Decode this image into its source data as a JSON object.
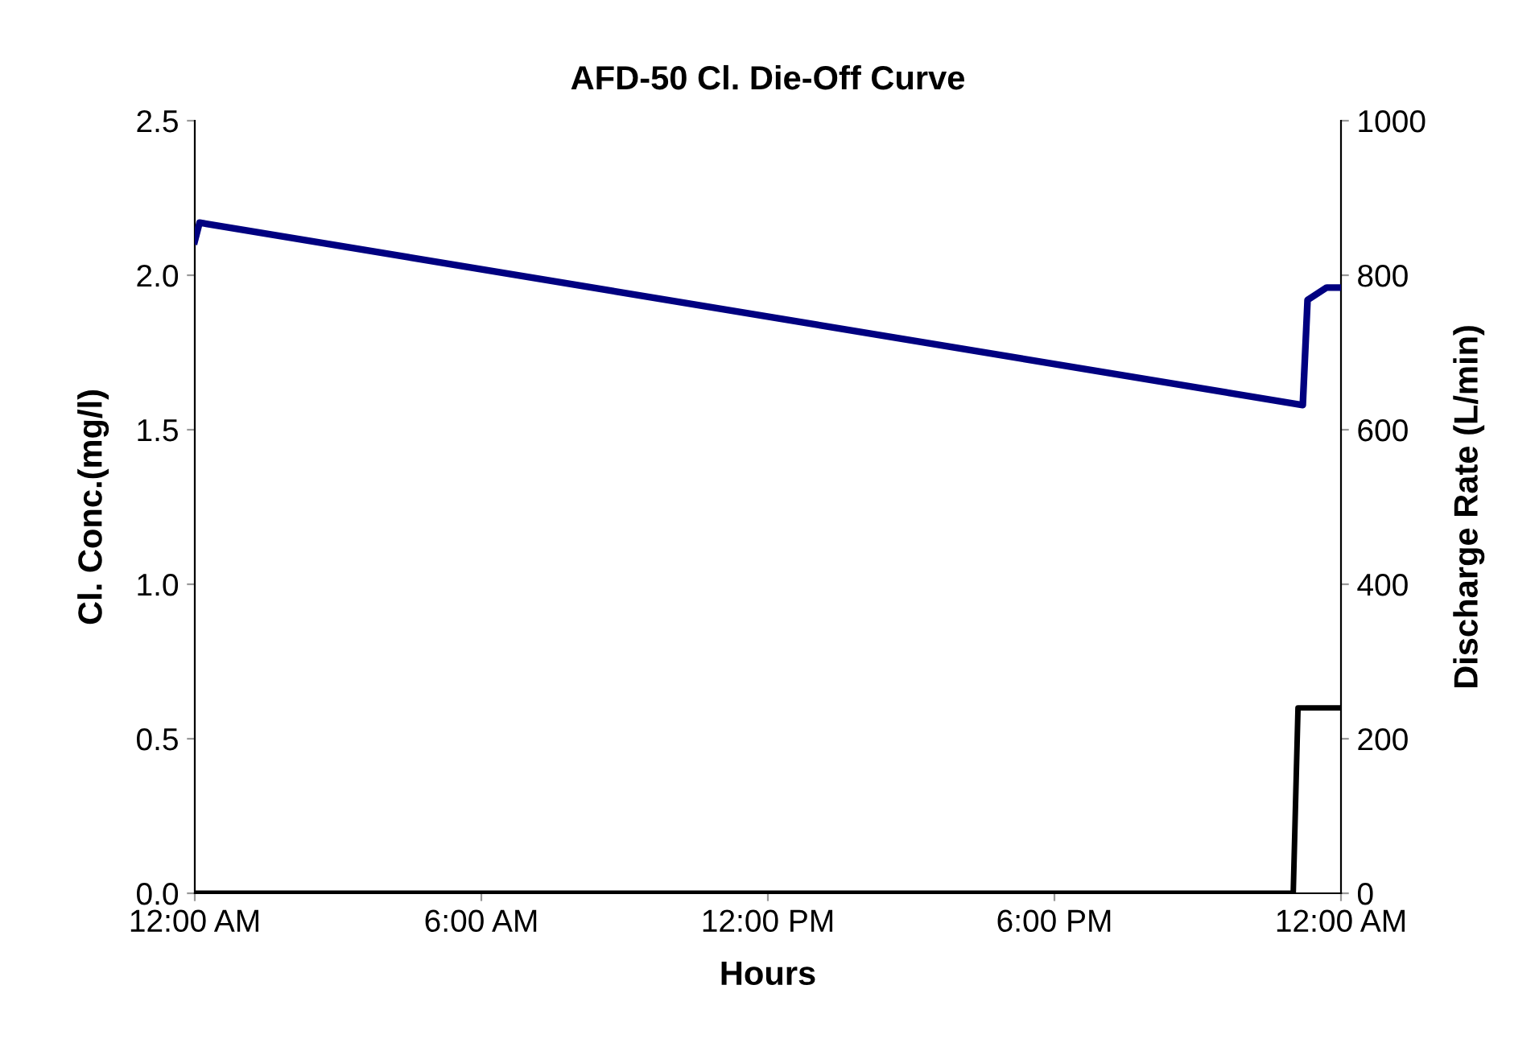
{
  "chart_data": {
    "type": "line",
    "title": "AFD-50 Cl. Die-Off Curve",
    "xlabel": "Hours",
    "ylabel": "Cl. Conc.(mg/l)",
    "y2label": "Discharge Rate (L/min)",
    "xlim": [
      0,
      24
    ],
    "xticks": [
      {
        "value": 0,
        "label": "12:00 AM"
      },
      {
        "value": 6,
        "label": "6:00 AM"
      },
      {
        "value": 12,
        "label": "12:00 PM"
      },
      {
        "value": 18,
        "label": "6:00 PM"
      },
      {
        "value": 24,
        "label": "12:00 AM"
      }
    ],
    "ylim": [
      0,
      2.5
    ],
    "yticks": [
      {
        "value": 0,
        "label": "0.0"
      },
      {
        "value": 0.5,
        "label": "0.5"
      },
      {
        "value": 1,
        "label": "1.0"
      },
      {
        "value": 1.5,
        "label": "1.5"
      },
      {
        "value": 2,
        "label": "2.0"
      },
      {
        "value": 2.5,
        "label": "2.5"
      }
    ],
    "y2lim": [
      0,
      1000
    ],
    "y2ticks": [
      0,
      200,
      400,
      600,
      800,
      1000
    ],
    "grid": false,
    "legend": false,
    "series": [
      {
        "color": "#000080",
        "x": [
          0,
          0.1,
          23.2,
          23.3,
          23.5,
          23.7,
          24
        ],
        "values": [
          2.11,
          2.17,
          1.58,
          1.92,
          1.94,
          1.96,
          1.96
        ]
      },
      {
        "color": "#000000",
        "axis": "y2",
        "x": [
          0,
          23.0,
          23.1,
          24
        ],
        "values": [
          0,
          0,
          240,
          240
        ]
      }
    ]
  }
}
